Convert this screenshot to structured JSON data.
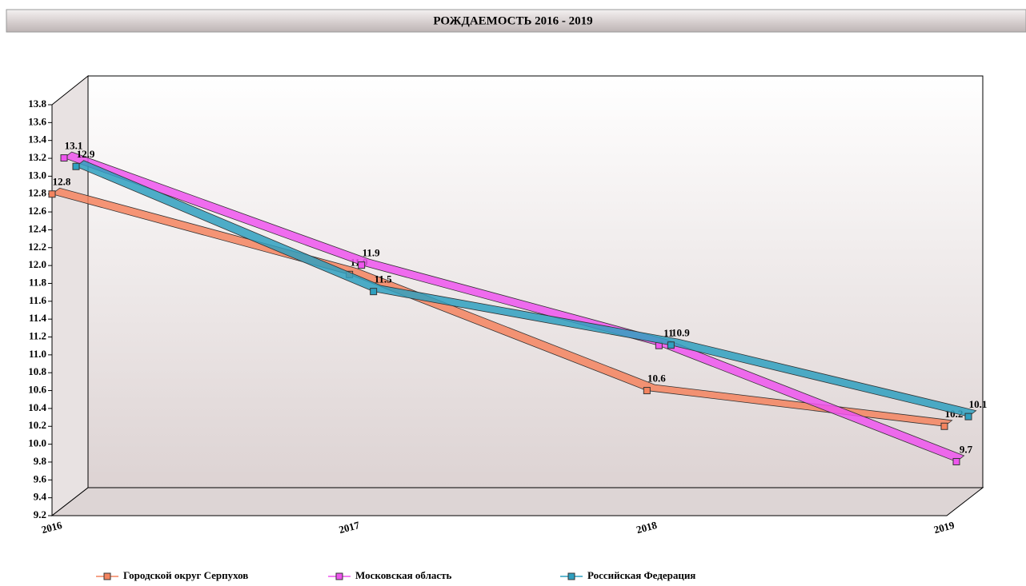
{
  "chart_data": {
    "type": "line3d",
    "title": "РОЖДАЕМОСТЬ 2016 - 2019",
    "categories": [
      "2016",
      "2017",
      "2018",
      "2019"
    ],
    "series": [
      {
        "name": "Городской округ Серпухов",
        "color": "#f4845f",
        "values": [
          12.8,
          11.9,
          10.6,
          10.2
        ]
      },
      {
        "name": "Московская область",
        "color": "#ee55ee",
        "values": [
          13.1,
          11.9,
          11,
          9.7
        ]
      },
      {
        "name": "Российская Федерация",
        "color": "#2fa0c0",
        "values": [
          12.9,
          11.5,
          10.9,
          10.1
        ]
      }
    ],
    "ylim": [
      9.2,
      13.8
    ],
    "yticks": [
      9.2,
      9.4,
      9.6,
      9.8,
      {
        "value": 10,
        "label": "10.0"
      },
      10.2,
      10.4,
      10.6,
      10.8,
      {
        "value": 11,
        "label": "11.0"
      },
      11.2,
      11.4,
      11.6,
      11.8,
      {
        "value": 12,
        "label": "12.0"
      },
      12.2,
      12.4,
      12.6,
      12.8,
      {
        "value": 13,
        "label": "13.0"
      },
      13.2,
      13.4,
      13.6,
      13.8
    ]
  }
}
